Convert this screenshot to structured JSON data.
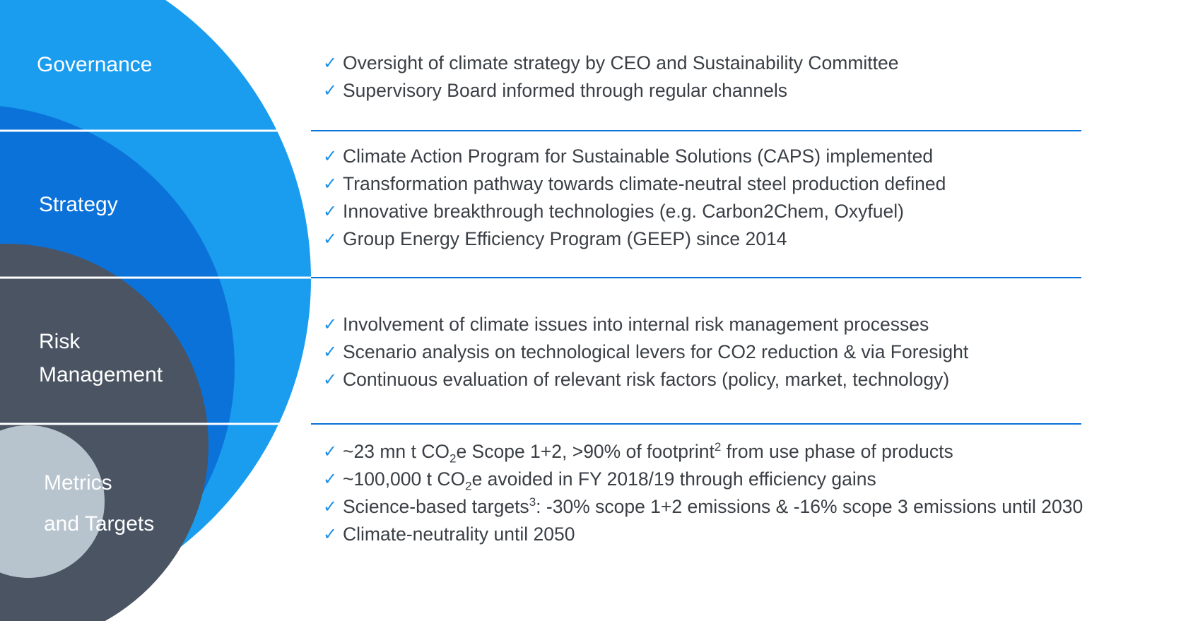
{
  "sections": [
    {
      "label": [
        "Governance"
      ],
      "bullets": [
        [
          "Oversight of climate strategy by CEO and Sustainability Committee"
        ],
        [
          "Supervisory Board informed through regular channels"
        ]
      ]
    },
    {
      "label": [
        "Strategy"
      ],
      "bullets": [
        [
          "Climate Action Program for Sustainable Solutions (CAPS) implemented"
        ],
        [
          "Transformation pathway towards climate-neutral steel production defined"
        ],
        [
          "Innovative breakthrough technologies (e.g. Carbon2Chem, Oxyfuel)"
        ],
        [
          "Group Energy Efficiency Program (GEEP) since 2014"
        ]
      ]
    },
    {
      "label": [
        "Risk",
        "Management"
      ],
      "bullets": [
        [
          "Involvement of climate issues into internal risk management processes"
        ],
        [
          "Scenario analysis on technological levers for CO2 reduction & via Foresight"
        ],
        [
          "Continuous evaluation of relevant risk factors (policy, market, technology)"
        ]
      ]
    },
    {
      "label": [
        "Metrics",
        "and Targets"
      ],
      "bullets": [
        [
          "~23 mn t CO",
          {
            "sub": "2"
          },
          "e Scope 1+2, >90% of footprint",
          {
            "sup": "2"
          },
          " from use phase of products"
        ],
        [
          "~100,000 t CO",
          {
            "sub": "2"
          },
          "e avoided in FY 2018/19 through efficiency gains"
        ],
        [
          "Science-based targets",
          {
            "sup": "3"
          },
          ": -30% scope 1+2 emissions & -16% scope 3 emissions until 2030"
        ],
        [
          "Climate-neutrality until 2050"
        ]
      ]
    }
  ]
}
